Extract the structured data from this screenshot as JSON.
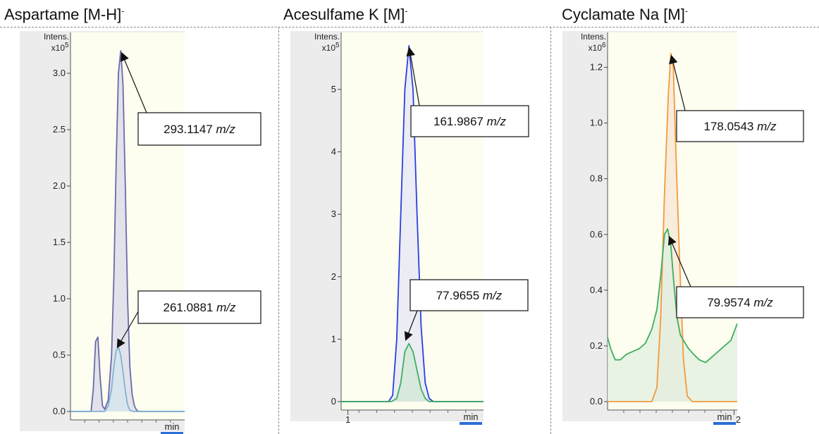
{
  "panels": [
    {
      "title": "Aspartame [M-H]",
      "title_sup": "-",
      "chart_data": {
        "type": "line",
        "ylabel": "Intens.",
        "ymultiplier": "x10",
        "ymultiplier_exp": "5",
        "ylim": [
          0,
          3.3
        ],
        "yticks": [
          0.0,
          0.5,
          1.0,
          1.5,
          2.0,
          2.5,
          3.0
        ],
        "ytick_labels": [
          "0.0",
          "0.5",
          "1.0",
          "1.5",
          "2.0",
          "2.5",
          "3.0"
        ],
        "xlim": [
          0,
          1
        ],
        "xtick_labels": [],
        "xunit": "min",
        "background": "#fdfdf0",
        "series": [
          {
            "color": "#6a6aaa",
            "fill": "#d8d8e8",
            "x": [
              0,
              0.18,
              0.2,
              0.22,
              0.24,
              0.26,
              0.28,
              0.3,
              0.33,
              0.36,
              0.38,
              0.4,
              0.42,
              0.44,
              0.46,
              0.48,
              0.5,
              0.52,
              0.54,
              0.56,
              0.58,
              0.6,
              0.62,
              1.0
            ],
            "y": [
              0,
              0,
              0.2,
              0.62,
              0.66,
              0.3,
              0.05,
              0.02,
              0.1,
              0.5,
              1.2,
              2.2,
              3.0,
              3.2,
              2.9,
              2.0,
              1.0,
              0.4,
              0.15,
              0.05,
              0.01,
              0,
              0,
              0
            ]
          },
          {
            "color": "#7fb3d5",
            "fill": "#d6e6ee",
            "x": [
              0,
              0.3,
              0.33,
              0.36,
              0.38,
              0.4,
              0.42,
              0.44,
              0.46,
              0.48,
              0.5,
              0.52,
              0.55,
              1.0
            ],
            "y": [
              0,
              0,
              0.05,
              0.2,
              0.4,
              0.54,
              0.57,
              0.5,
              0.35,
              0.18,
              0.06,
              0.01,
              0,
              0
            ]
          }
        ],
        "annotations": [
          {
            "mz": "293.1147",
            "unit": "m/z",
            "point_x": 0.44,
            "point_y": 3.2
          },
          {
            "mz": "261.0881",
            "unit": "m/z",
            "point_x": 0.4,
            "point_y": 0.55
          }
        ]
      }
    },
    {
      "title": "Acesulfame K [M]",
      "title_sup": "-",
      "chart_data": {
        "type": "line",
        "ylabel": "Intens.",
        "ymultiplier": "x10",
        "ymultiplier_exp": "5",
        "ylim": [
          0,
          5.8
        ],
        "yticks": [
          0,
          1,
          2,
          3,
          4,
          5
        ],
        "ytick_labels": [
          "0",
          "1",
          "2",
          "3",
          "4",
          "5"
        ],
        "xlim": [
          0.95,
          2.0
        ],
        "xtick_labels": [
          "1"
        ],
        "xticks": [
          1.0
        ],
        "xunit": "min",
        "background": "#fdfdf0",
        "series": [
          {
            "color": "#2a3fe0",
            "fill": "#e4e6f6",
            "x": [
              0.95,
              1.3,
              1.33,
              1.36,
              1.39,
              1.42,
              1.45,
              1.48,
              1.51,
              1.54,
              1.57,
              1.6,
              1.63,
              2.0
            ],
            "y": [
              0,
              0,
              0.1,
              1.0,
              3.0,
              5.0,
              5.7,
              5.0,
              3.0,
              1.2,
              0.3,
              0.05,
              0,
              0
            ]
          },
          {
            "color": "#3fae60",
            "fill": "#d0e8d4",
            "x": [
              0.95,
              1.32,
              1.36,
              1.39,
              1.42,
              1.45,
              1.48,
              1.51,
              1.54,
              1.57,
              1.6,
              2.0
            ],
            "y": [
              0,
              0,
              0.05,
              0.3,
              0.8,
              0.93,
              0.8,
              0.5,
              0.2,
              0.05,
              0,
              0
            ]
          }
        ],
        "annotations": [
          {
            "mz": "161.9867",
            "unit": "m/z",
            "point_x": 1.45,
            "point_y": 5.7
          },
          {
            "mz": "77.9655",
            "unit": "m/z",
            "point_x": 1.42,
            "point_y": 0.95
          }
        ]
      }
    },
    {
      "title": "Cyclamate Na [M]",
      "title_sup": "-",
      "chart_data": {
        "type": "line",
        "ylabel": "Intens.",
        "ymultiplier": "x10",
        "ymultiplier_exp": "6",
        "ylim": [
          0,
          1.3
        ],
        "yticks": [
          0.0,
          0.2,
          0.4,
          0.6,
          0.8,
          1.0,
          1.2
        ],
        "ytick_labels": [
          "0.0",
          "0.2",
          "0.4",
          "0.6",
          "0.8",
          "1.0",
          "1.2"
        ],
        "xlim": [
          0,
          2.05
        ],
        "xticks": [
          2.0
        ],
        "xtick_labels": [
          "2"
        ],
        "xunit": "min",
        "background": "#fdfdf0",
        "series": [
          {
            "color": "#f39a3c",
            "fill": "#f6e6d6",
            "x": [
              0,
              0.7,
              0.78,
              0.84,
              0.9,
              0.96,
              1.0,
              1.04,
              1.08,
              1.14,
              1.2,
              1.26,
              1.34,
              2.05
            ],
            "y": [
              0,
              0,
              0.05,
              0.3,
              0.75,
              1.1,
              1.25,
              1.2,
              0.9,
              0.5,
              0.15,
              0.02,
              0,
              0
            ]
          },
          {
            "color": "#3fae60",
            "fill": "#e0efe0",
            "x": [
              0,
              0.05,
              0.12,
              0.2,
              0.3,
              0.4,
              0.5,
              0.6,
              0.7,
              0.78,
              0.84,
              0.9,
              0.95,
              1.0,
              1.05,
              1.1,
              1.15,
              1.2,
              1.28,
              1.36,
              1.45,
              1.55,
              1.65,
              1.75,
              1.85,
              1.95,
              2.05
            ],
            "y": [
              0.23,
              0.19,
              0.15,
              0.15,
              0.17,
              0.18,
              0.19,
              0.21,
              0.26,
              0.33,
              0.45,
              0.6,
              0.62,
              0.56,
              0.42,
              0.3,
              0.24,
              0.22,
              0.19,
              0.17,
              0.15,
              0.14,
              0.16,
              0.18,
              0.2,
              0.22,
              0.28
            ]
          }
        ],
        "annotations": [
          {
            "mz": "178.0543",
            "unit": "m/z",
            "point_x": 1.0,
            "point_y": 1.25
          },
          {
            "mz": "79.9574",
            "unit": "m/z",
            "point_x": 0.96,
            "point_y": 0.6
          }
        ]
      }
    }
  ]
}
